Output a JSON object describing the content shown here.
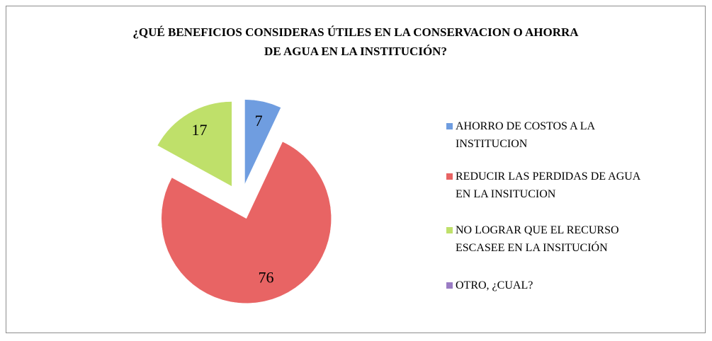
{
  "chart_data": {
    "type": "pie",
    "title": "¿QUÉ BENEFICIOS CONSIDERAS ÚTILES EN LA CONSERVACION O AHORRA DE AGUA EN LA INSTITUCIÓN?",
    "categories": [
      "AHORRO DE COSTOS A LA INSTITUCION",
      "REDUCIR LAS PERDIDAS DE AGUA EN LA INSITUCION",
      "NO LOGRAR QUE EL RECURSO ESCASEE EN LA INSITUCIÓN",
      "OTRO, ¿CUAL?"
    ],
    "values": [
      7,
      76,
      17,
      0
    ],
    "colors": [
      "#6f9de0",
      "#e86464",
      "#bfe06a",
      "#9a7cc4"
    ],
    "legend": "right"
  }
}
